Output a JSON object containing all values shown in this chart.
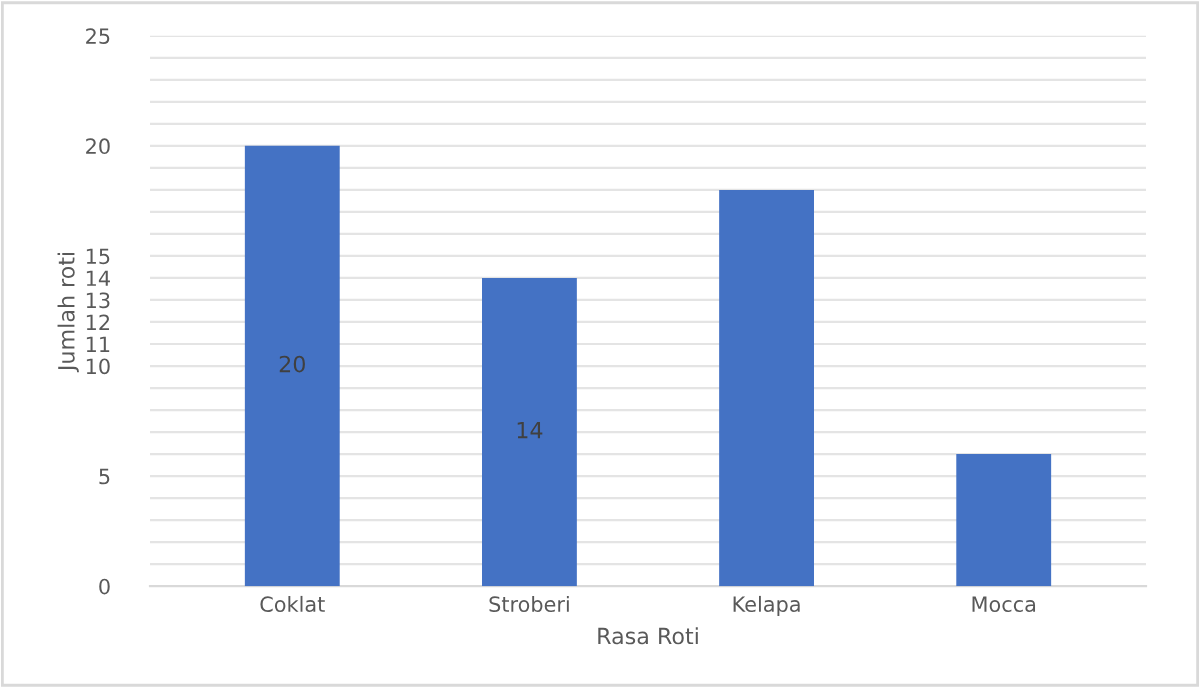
{
  "chart_data": {
    "type": "bar",
    "xlabel": "Rasa Roti",
    "ylabel": "Jumlah roti",
    "categories": [
      "Coklat",
      "Stroberi",
      "Kelapa",
      "Mocca"
    ],
    "values": [
      20,
      14,
      18,
      6
    ],
    "color": "#4472c4",
    "value_labels": [
      "20",
      "14",
      null,
      null
    ],
    "ylim": [
      0,
      25
    ],
    "yticks": [
      0,
      {
        "value": 1,
        "label": null
      },
      {
        "value": 2,
        "label": null
      },
      {
        "value": 3,
        "label": null
      },
      {
        "value": 4,
        "label": null
      },
      5,
      {
        "value": 6,
        "label": null
      },
      {
        "value": 7,
        "label": null
      },
      {
        "value": 8,
        "label": null
      },
      {
        "value": 9,
        "label": null
      },
      10,
      11,
      12,
      13,
      14,
      15,
      {
        "value": 16,
        "label": null
      },
      {
        "value": 17,
        "label": null
      },
      {
        "value": 18,
        "label": null
      },
      {
        "value": 19,
        "label": null
      },
      20,
      {
        "value": 21,
        "label": null
      },
      {
        "value": 22,
        "label": null
      },
      {
        "value": 23,
        "label": null
      },
      {
        "value": 24,
        "label": null
      },
      25
    ],
    "grid": "y",
    "legend": false
  }
}
